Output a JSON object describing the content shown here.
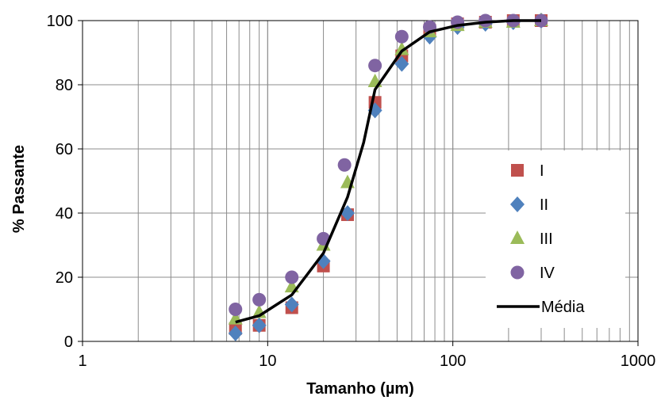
{
  "chart_data": {
    "type": "scatter",
    "title": "",
    "xlabel": "Tamanho (µm)",
    "ylabel": "% Passante",
    "xscale": "log",
    "xlim": [
      1,
      1000
    ],
    "ylim": [
      0,
      100
    ],
    "xticks": [
      "1",
      "10",
      "100",
      "1000"
    ],
    "yticks": [
      "0",
      "20",
      "40",
      "60",
      "80",
      "100"
    ],
    "grid": true,
    "legend_position": "right",
    "series": [
      {
        "name": "I",
        "marker": "square",
        "color": "#C0504D",
        "x": [
          6.7,
          9.0,
          13.5,
          20,
          27,
          38,
          53,
          75,
          106,
          150,
          212,
          300
        ],
        "y": [
          4,
          5,
          10.5,
          23.5,
          39.5,
          74.5,
          89,
          97,
          99,
          99.5,
          100,
          100
        ]
      },
      {
        "name": "II",
        "marker": "diamond",
        "color": "#4F81BD",
        "x": [
          6.7,
          9.0,
          13.5,
          20,
          27,
          38,
          53,
          75,
          106,
          150,
          212,
          300
        ],
        "y": [
          2.5,
          5,
          11.5,
          25,
          40,
          72,
          86.5,
          95,
          98,
          99,
          99.5,
          100
        ]
      },
      {
        "name": "III",
        "marker": "triangle",
        "color": "#9BBB59",
        "x": [
          6.7,
          9.0,
          13.5,
          20,
          27,
          38,
          53,
          75,
          106,
          150,
          212,
          300
        ],
        "y": [
          7,
          9,
          17,
          30,
          49.5,
          81,
          91,
          96.5,
          98.5,
          99.5,
          99.5,
          100
        ]
      },
      {
        "name": "IV",
        "marker": "circle",
        "color": "#8064A2",
        "x": [
          6.7,
          9.0,
          13.5,
          20,
          26,
          38,
          53,
          75,
          106,
          150,
          212,
          300
        ],
        "y": [
          10,
          13,
          20,
          32,
          55,
          86,
          95,
          98,
          99.5,
          100,
          100,
          100
        ]
      },
      {
        "name": "Média",
        "marker": "line",
        "color": "#000000",
        "x": [
          6.7,
          9.0,
          13.5,
          20,
          27,
          33,
          38,
          53,
          75,
          106,
          150,
          212,
          300
        ],
        "y": [
          6,
          8,
          14.5,
          27.5,
          45,
          62,
          78.5,
          90.5,
          96.5,
          98.5,
          99.5,
          100,
          100
        ]
      }
    ]
  }
}
